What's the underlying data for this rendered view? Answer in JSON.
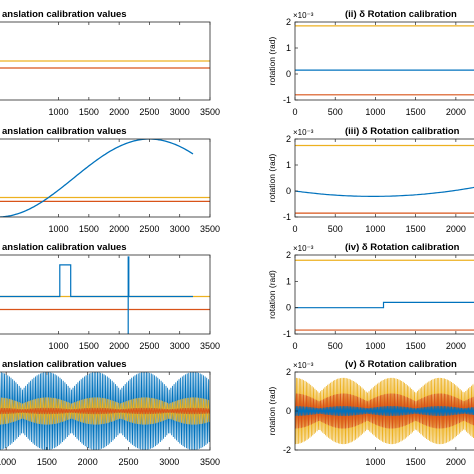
{
  "chart_data": [
    {
      "id": "left-1",
      "type": "line",
      "title": "anslation calibration values",
      "xlim": [
        0,
        3500
      ],
      "ylim": [
        -1,
        1
      ],
      "xticks": [
        "1000",
        "1500",
        "2000",
        "2500",
        "3000",
        "3500"
      ],
      "xtick_values": [
        1000,
        1500,
        2000,
        2500,
        3000,
        3500
      ],
      "series": [
        {
          "color": "#EDB120",
          "kind": "const",
          "value": 0.0
        },
        {
          "color": "#D95319",
          "kind": "const",
          "value": -0.18
        },
        {
          "color": "#0072BD",
          "kind": "const",
          "value": 1.02
        }
      ]
    },
    {
      "id": "left-2",
      "type": "line",
      "title": "anslation calibration values",
      "xlim": [
        0,
        3500
      ],
      "ylim": [
        -1,
        1
      ],
      "xticks": [
        "1000",
        "1500",
        "2000",
        "2500",
        "3000",
        "3500"
      ],
      "xtick_values": [
        1000,
        1500,
        2000,
        2500,
        3000,
        3500
      ],
      "series": [
        {
          "color": "#EDB120",
          "kind": "const",
          "value": -0.5
        },
        {
          "color": "#D95319",
          "kind": "const",
          "value": -0.6
        },
        {
          "color": "#0072BD",
          "kind": "sine",
          "x": [
            0,
            2500,
            3220
          ],
          "y": [
            -1.0,
            1.0,
            -0.5
          ]
        }
      ]
    },
    {
      "id": "left-3",
      "type": "line",
      "title": "anslation calibration values",
      "xlim": [
        0,
        3500
      ],
      "ylim": [
        -1,
        1
      ],
      "xticks": [
        "1000",
        "1500",
        "2000",
        "2500",
        "3000",
        "3500"
      ],
      "xtick_values": [
        1000,
        1500,
        2000,
        2500,
        3000,
        3500
      ],
      "series": [
        {
          "color": "#EDB120",
          "kind": "const",
          "value": -0.05
        },
        {
          "color": "#D95319",
          "kind": "const",
          "value": -0.38
        },
        {
          "color": "#0072BD",
          "kind": "steps",
          "points": [
            [
              0,
              -0.05
            ],
            [
              1020,
              -0.05
            ],
            [
              1020,
              0.75
            ],
            [
              1200,
              0.75
            ],
            [
              1200,
              -0.05
            ],
            [
              2150,
              -0.05
            ],
            [
              2150,
              -1.0
            ],
            [
              2150,
              0.95
            ],
            [
              2160,
              0.95
            ],
            [
              2160,
              -0.05
            ],
            [
              3220,
              -0.05
            ]
          ]
        }
      ]
    },
    {
      "id": "left-4",
      "type": "line",
      "title": "anslation calibration values",
      "xlim": [
        900,
        3500
      ],
      "ylim": [
        -1,
        1
      ],
      "xticks": [
        "1000",
        "1500",
        "2000",
        "2500",
        "3000",
        "3500"
      ],
      "xtick_values": [
        1000,
        1500,
        2000,
        2500,
        3000,
        3500
      ],
      "series": [
        {
          "color": "#0072BD",
          "kind": "oscillation",
          "amplitude": 1.0
        },
        {
          "color": "#EDB120",
          "kind": "oscillation",
          "amplitude": 0.35
        },
        {
          "color": "#D95319",
          "kind": "oscillation",
          "amplitude": 0.08
        }
      ]
    },
    {
      "id": "right-1",
      "type": "line",
      "title": "(ii)  δ Rotation calibration",
      "xlim": [
        0,
        2300
      ],
      "ylim": [
        -1,
        2
      ],
      "yticks": [
        "-1",
        "0",
        "1",
        "2"
      ],
      "ytick_values": [
        -1,
        0,
        1,
        2
      ],
      "xticks": [
        "0",
        "500",
        "1000",
        "1500",
        "2000"
      ],
      "xtick_values": [
        0,
        500,
        1000,
        1500,
        2000
      ],
      "ylabel": "rotation (rad)",
      "exponent": "×10⁻³",
      "series": [
        {
          "color": "#EDB120",
          "kind": "const",
          "value": 1.85
        },
        {
          "color": "#0072BD",
          "kind": "const",
          "value": 0.15
        },
        {
          "color": "#D95319",
          "kind": "const",
          "value": -0.8
        }
      ]
    },
    {
      "id": "right-2",
      "type": "line",
      "title": "(iii)  δ Rotation calibration",
      "xlim": [
        0,
        2300
      ],
      "ylim": [
        -1,
        2
      ],
      "yticks": [
        "-1",
        "0",
        "1",
        "2"
      ],
      "ytick_values": [
        -1,
        0,
        1,
        2
      ],
      "xticks": [
        "0",
        "500",
        "1000",
        "1500",
        "2000"
      ],
      "xtick_values": [
        0,
        500,
        1000,
        1500,
        2000
      ],
      "ylabel": "rotation (rad)",
      "exponent": "×10⁻³",
      "series": [
        {
          "color": "#EDB120",
          "kind": "const",
          "value": 1.75
        },
        {
          "color": "#0072BD",
          "kind": "wave",
          "x": [
            0,
            1150,
            2300
          ],
          "y": [
            0.0,
            -0.2,
            0.18
          ]
        },
        {
          "color": "#D95319",
          "kind": "const",
          "value": -0.85
        }
      ]
    },
    {
      "id": "right-3",
      "type": "line",
      "title": "(iv)  δ Rotation calibration",
      "xlim": [
        0,
        2300
      ],
      "ylim": [
        -1,
        2
      ],
      "yticks": [
        "-1",
        "0",
        "1",
        "2"
      ],
      "ytick_values": [
        -1,
        0,
        1,
        2
      ],
      "xticks": [
        "0",
        "500",
        "1000",
        "1500",
        "2000"
      ],
      "xtick_values": [
        0,
        500,
        1000,
        1500,
        2000
      ],
      "ylabel": "rotation (rad)",
      "exponent": "×10⁻³",
      "series": [
        {
          "color": "#EDB120",
          "kind": "const",
          "value": 1.8
        },
        {
          "color": "#0072BD",
          "kind": "steps",
          "points": [
            [
              0,
              0.0
            ],
            [
              1100,
              0.0
            ],
            [
              1100,
              0.2
            ],
            [
              2300,
              0.2
            ]
          ]
        },
        {
          "color": "#D95319",
          "kind": "const",
          "value": -0.85
        }
      ]
    },
    {
      "id": "right-4",
      "type": "line",
      "title": "(v)  δ Rotation calibration",
      "xlim": [
        0,
        2300
      ],
      "ylim": [
        -2,
        2
      ],
      "yticks": [
        "-2",
        "0",
        "2"
      ],
      "ytick_values": [
        -2,
        0,
        2
      ],
      "xticks": [
        "1000",
        "1500",
        "2000"
      ],
      "xtick_values": [
        1000,
        1500,
        2000
      ],
      "ylabel": "rotation (rad)",
      "exponent": "×10⁻³",
      "series": [
        {
          "color": "#EDB120",
          "kind": "oscillation",
          "amplitude": 1.7
        },
        {
          "color": "#D95319",
          "kind": "oscillation",
          "amplitude": 0.9
        },
        {
          "color": "#0072BD",
          "kind": "oscillation",
          "amplitude": 0.25
        }
      ]
    }
  ]
}
